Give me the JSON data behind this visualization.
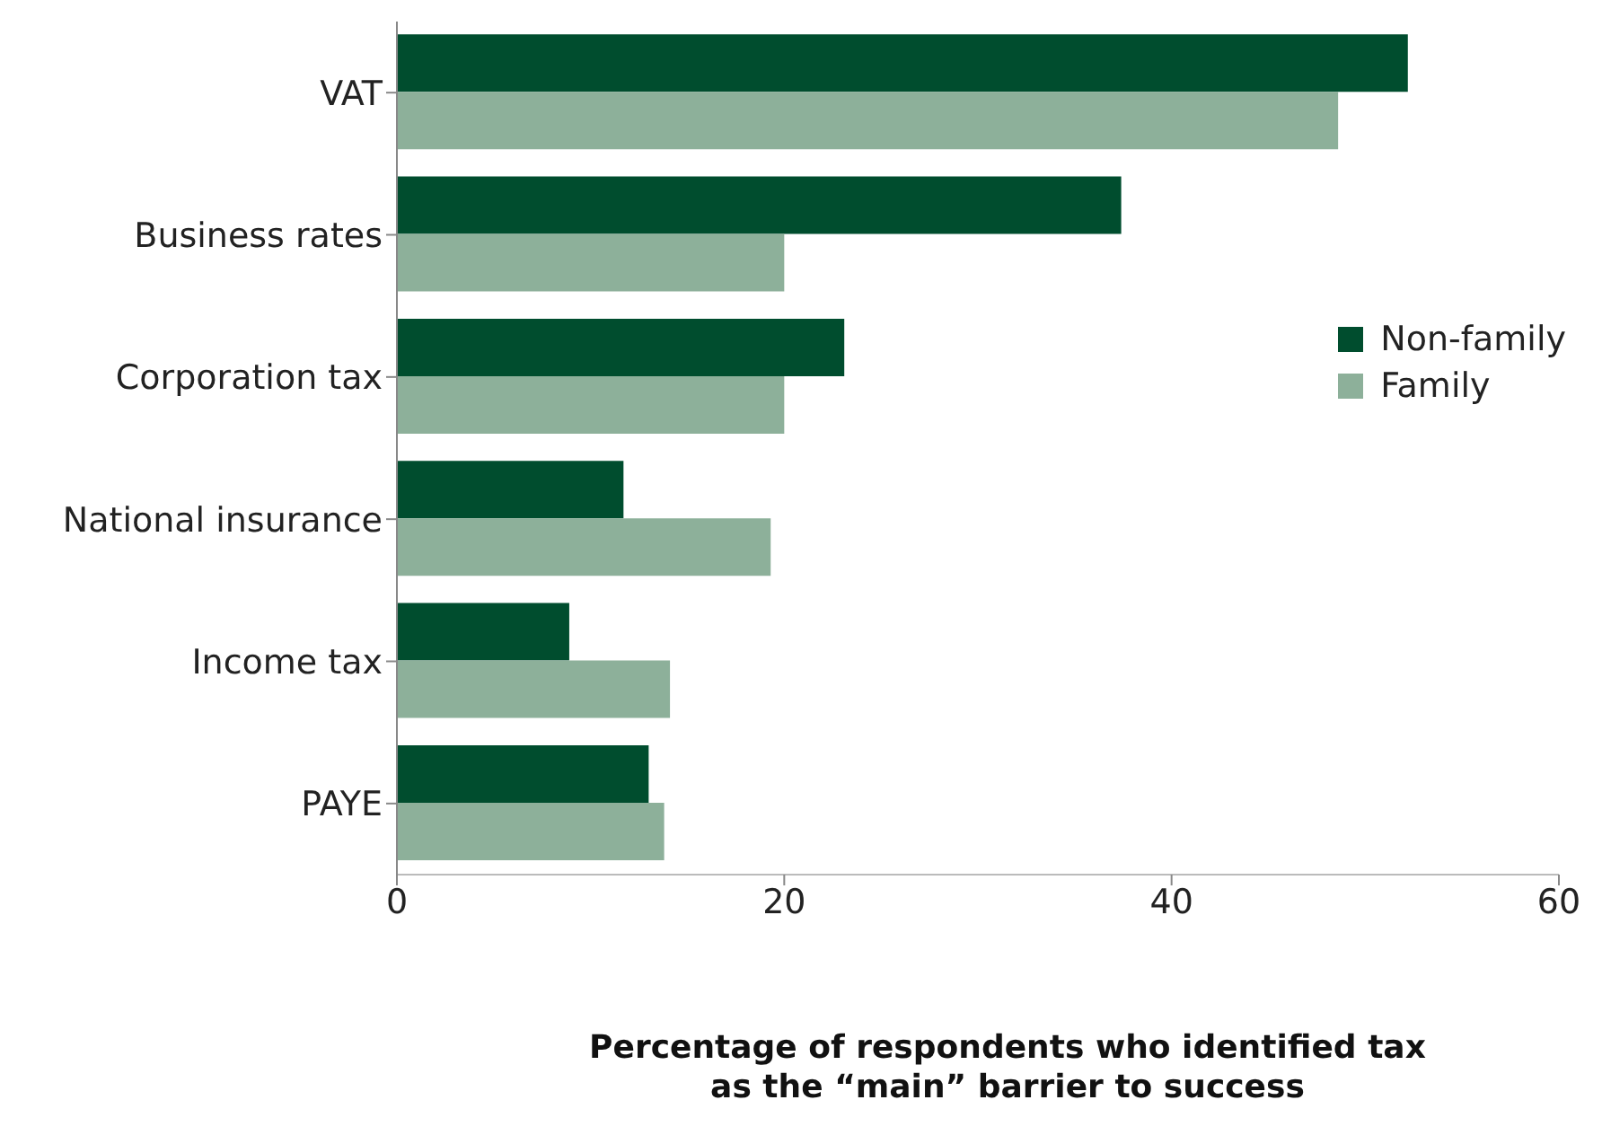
{
  "chart_data": {
    "type": "bar",
    "orientation": "horizontal",
    "xlabel": "Percentage of respondents who identified tax as the “main” barrier to success",
    "categories": [
      "VAT",
      "Business rates",
      "Corporation tax",
      "National insurance",
      "Income tax",
      "PAYE"
    ],
    "series": [
      {
        "name": "Non-family",
        "color": "#004d2e",
        "values": [
          52.2,
          37.4,
          23.1,
          11.7,
          8.9,
          13.0
        ]
      },
      {
        "name": "Family",
        "color": "#8db09a",
        "values": [
          48.6,
          20.0,
          20.0,
          19.3,
          14.1,
          13.8
        ]
      }
    ],
    "xlim": [
      0,
      60
    ],
    "xticks": [
      0,
      20,
      40,
      60
    ],
    "grid": false,
    "legend": "right"
  }
}
